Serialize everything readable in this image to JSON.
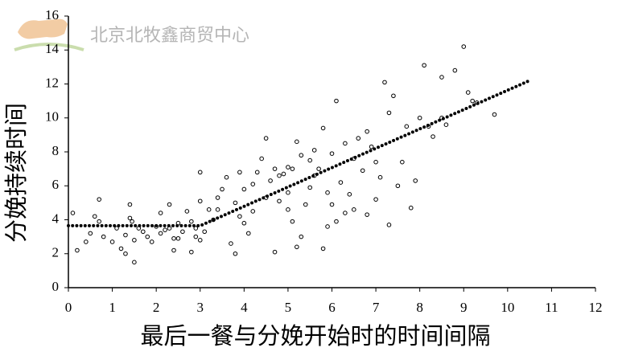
{
  "chart_data": {
    "type": "scatter",
    "xlabel": "最后一餐与分娩开始时的时间间隔",
    "ylabel": "分娩持续时间",
    "annotation": "北京北牧鑫商贸中心",
    "xlim": [
      0,
      12
    ],
    "xticks": [
      0,
      1,
      2,
      3,
      4,
      5,
      6,
      7,
      8,
      9,
      10,
      11,
      12
    ],
    "ylim": [
      0,
      16
    ],
    "yticks": [
      0,
      2,
      4,
      6,
      8,
      10,
      12,
      14,
      16
    ],
    "series": [
      {
        "type": "scatter",
        "color": "#000000",
        "x": [
          0.1,
          0.2,
          0.4,
          0.5,
          0.6,
          0.7,
          0.7,
          0.8,
          1.0,
          1.1,
          1.2,
          1.3,
          1.3,
          1.4,
          1.4,
          1.45,
          1.5,
          1.5,
          1.6,
          1.7,
          1.8,
          1.9,
          2.0,
          2.1,
          2.1,
          2.2,
          2.3,
          2.3,
          2.4,
          2.4,
          2.5,
          2.5,
          2.6,
          2.7,
          2.8,
          2.8,
          2.9,
          2.9,
          3.0,
          3.0,
          3.0,
          3.1,
          3.2,
          3.3,
          3.4,
          3.4,
          3.5,
          3.6,
          3.7,
          3.8,
          3.8,
          3.9,
          3.9,
          4.0,
          4.0,
          4.1,
          4.2,
          4.2,
          4.3,
          4.4,
          4.5,
          4.5,
          4.6,
          4.7,
          4.7,
          4.8,
          4.8,
          4.9,
          5.0,
          5.0,
          5.0,
          5.1,
          5.1,
          5.2,
          5.2,
          5.3,
          5.3,
          5.4,
          5.5,
          5.5,
          5.6,
          5.6,
          5.7,
          5.8,
          5.8,
          5.9,
          5.9,
          6.0,
          6.0,
          6.1,
          6.1,
          6.2,
          6.3,
          6.3,
          6.4,
          6.5,
          6.5,
          6.6,
          6.7,
          6.8,
          6.8,
          6.9,
          7.0,
          7.0,
          7.1,
          7.2,
          7.3,
          7.3,
          7.4,
          7.5,
          7.6,
          7.7,
          7.8,
          7.9,
          8.0,
          8.1,
          8.2,
          8.3,
          8.5,
          8.5,
          8.6,
          8.8,
          9.0,
          9.1,
          9.2,
          9.3,
          9.7
        ],
        "values": [
          4.4,
          2.2,
          2.7,
          3.2,
          4.2,
          5.2,
          3.9,
          3.0,
          2.7,
          3.5,
          2.3,
          2.0,
          3.1,
          4.9,
          4.1,
          3.9,
          1.5,
          2.8,
          3.5,
          3.3,
          3.0,
          2.7,
          3.6,
          4.4,
          3.2,
          3.4,
          4.9,
          3.5,
          2.9,
          2.2,
          3.8,
          2.9,
          3.3,
          4.5,
          2.1,
          3.9,
          3.5,
          3.0,
          6.8,
          5.1,
          2.8,
          3.3,
          4.6,
          4.0,
          5.3,
          4.6,
          5.8,
          6.5,
          2.6,
          2.0,
          5.0,
          6.8,
          4.2,
          3.8,
          5.8,
          3.2,
          6.1,
          4.5,
          6.8,
          7.6,
          8.8,
          5.3,
          6.3,
          2.1,
          7.0,
          6.6,
          5.1,
          6.7,
          4.6,
          7.1,
          5.6,
          3.9,
          7.0,
          2.4,
          8.6,
          3.0,
          7.8,
          4.9,
          5.9,
          7.5,
          8.1,
          6.6,
          7.0,
          2.3,
          9.4,
          3.6,
          5.6,
          4.9,
          7.9,
          11.0,
          3.9,
          6.2,
          8.5,
          4.4,
          5.5,
          4.6,
          7.6,
          8.8,
          6.9,
          4.3,
          9.2,
          8.3,
          7.4,
          5.2,
          6.5,
          12.1,
          3.7,
          10.3,
          11.3,
          6.0,
          7.4,
          9.5,
          4.7,
          6.3,
          10.0,
          13.1,
          9.5,
          8.9,
          12.4,
          10.0,
          9.6,
          12.8,
          14.2,
          11.5,
          11.0,
          10.9,
          10.2
        ]
      },
      {
        "type": "line",
        "color": "#000000",
        "x": [
          0,
          3,
          10.5
        ],
        "values": [
          3.65,
          3.65,
          12.2
        ]
      }
    ]
  }
}
